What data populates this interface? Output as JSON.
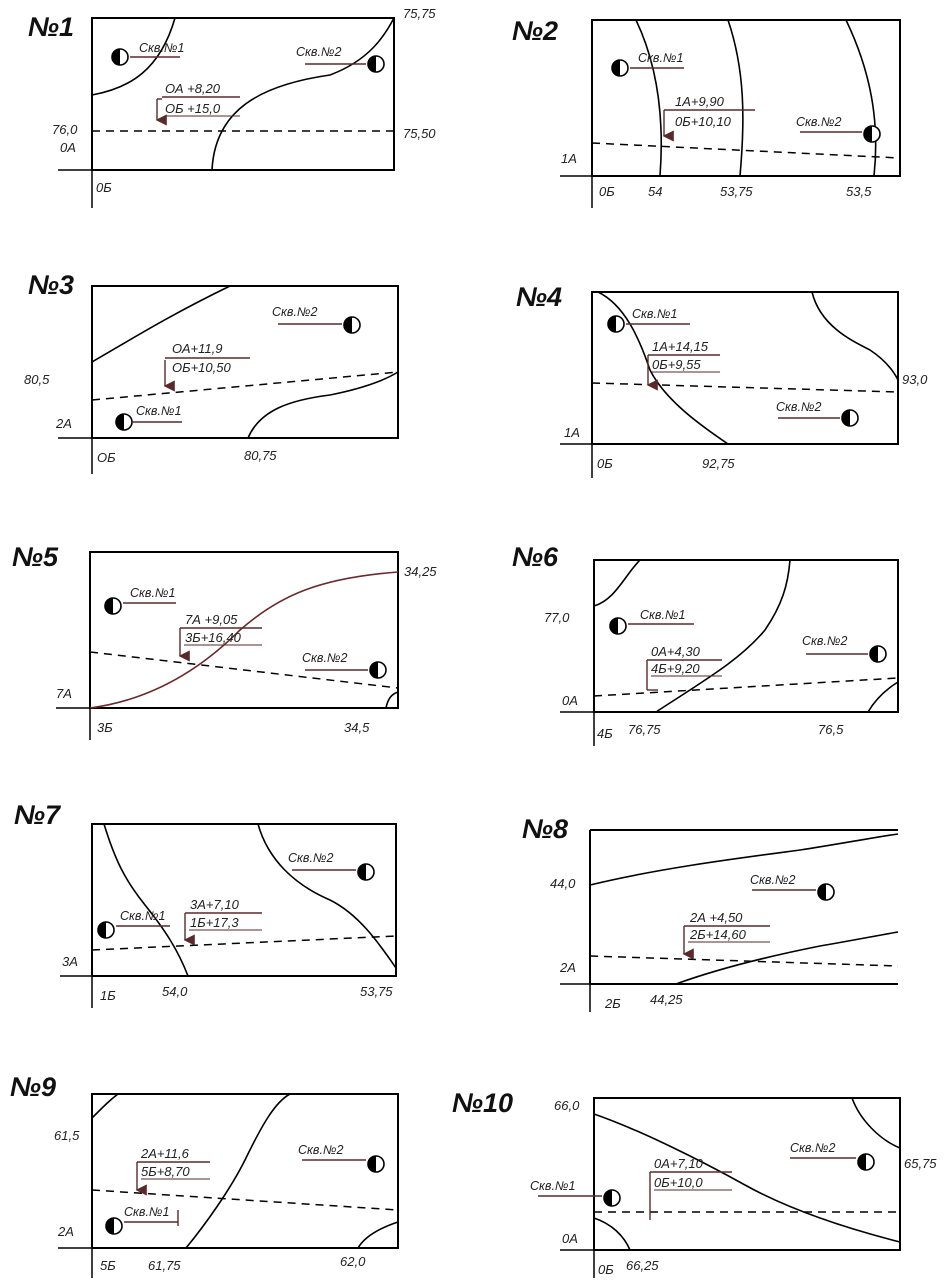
{
  "panels": [
    {
      "title": "№1",
      "well1": "Скв.№1",
      "well2": "Скв.№2",
      "point_a": "ОА +8,20",
      "point_b": "ОБ +15,0",
      "axis_a": "0А",
      "axis_b": "0Б",
      "contours": [
        "75,75",
        "76,0",
        "75,50"
      ]
    },
    {
      "title": "№2",
      "well1": "Скв.№1",
      "well2": "Скв.№2",
      "point_a": "1А+9,90",
      "point_b": "0Б+10,10",
      "axis_a": "1А",
      "axis_b": "0Б",
      "contours": [
        "54",
        "53,75",
        "53,5"
      ]
    },
    {
      "title": "№3",
      "well1": "Скв.№1",
      "well2": "Скв.№2",
      "point_a": "ОА+11,9",
      "point_b": "ОБ+10,50",
      "axis_a": "2А",
      "axis_b": "ОБ",
      "contours": [
        "80,5",
        "80,75"
      ]
    },
    {
      "title": "№4",
      "well1": "Скв.№1",
      "well2": "Скв.№2",
      "point_a": "1А+14,15",
      "point_b": "0Б+9,55",
      "axis_a": "1А",
      "axis_b": "0Б",
      "contours": [
        "93,0",
        "92,75"
      ]
    },
    {
      "title": "№5",
      "well1": "Скв.№1",
      "well2": "Скв.№2",
      "point_a": "7А +9,05",
      "point_b": "3Б+16,40",
      "axis_a": "7А",
      "axis_b": "3Б",
      "contours": [
        "34,25",
        "34,5"
      ]
    },
    {
      "title": "№6",
      "well1": "Скв.№1",
      "well2": "Скв.№2",
      "point_a": "0А+4,30",
      "point_b": "4Б+9,20",
      "axis_a": "0А",
      "axis_b": "4Б",
      "contours": [
        "77,0",
        "76,75",
        "76,5"
      ]
    },
    {
      "title": "№7",
      "well1": "Скв.№1",
      "well2": "Скв.№2",
      "point_a": "3А+7,10",
      "point_b": "1Б+17,3",
      "axis_a": "3А",
      "axis_b": "1Б",
      "contours": [
        "54,0",
        "53,75"
      ]
    },
    {
      "title": "№8",
      "well2": "Скв.№2",
      "point_a": "2А +4,50",
      "point_b": "2Б+14,60",
      "axis_a": "2А",
      "axis_b": "2Б",
      "contours": [
        "44,0",
        "44,25"
      ]
    },
    {
      "title": "№9",
      "well1": "Скв.№1",
      "well2": "Скв.№2",
      "point_a": "2А+11,6",
      "point_b": "5Б+8,70",
      "axis_a": "2А",
      "axis_b": "5Б",
      "contours": [
        "61,5",
        "61,75",
        "62,0"
      ]
    },
    {
      "title": "№10",
      "well1": "Скв.№1",
      "well2": "Скв.№2",
      "point_a": "0А+7,10",
      "point_b": "0Б+10,0",
      "axis_a": "0А",
      "axis_b": "0Б",
      "contours": [
        "66,0",
        "65,75",
        "66,25"
      ]
    }
  ]
}
